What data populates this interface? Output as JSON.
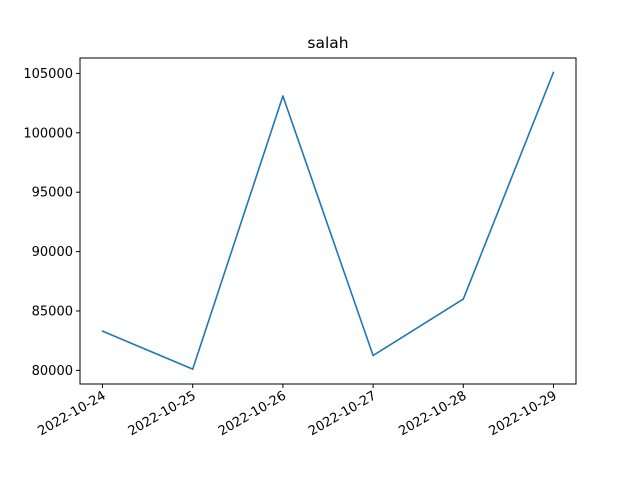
{
  "chart_data": {
    "type": "line",
    "title": "salah",
    "xlabel": "",
    "ylabel": "",
    "x": [
      "2022-10-24",
      "2022-10-25",
      "2022-10-26",
      "2022-10-27",
      "2022-10-28",
      "2022-10-29"
    ],
    "series": [
      {
        "values": [
          83300,
          80100,
          103100,
          81250,
          86000,
          105100
        ]
      }
    ],
    "ylim": [
      78850,
      106300
    ],
    "yticks": [
      80000,
      85000,
      90000,
      95000,
      100000,
      105000
    ],
    "xtick_labels": [
      "2022-10-24",
      "2022-10-25",
      "2022-10-26",
      "2022-10-27",
      "2022-10-28",
      "2022-10-29"
    ],
    "grid": false,
    "line_color": "#1f77b4"
  }
}
